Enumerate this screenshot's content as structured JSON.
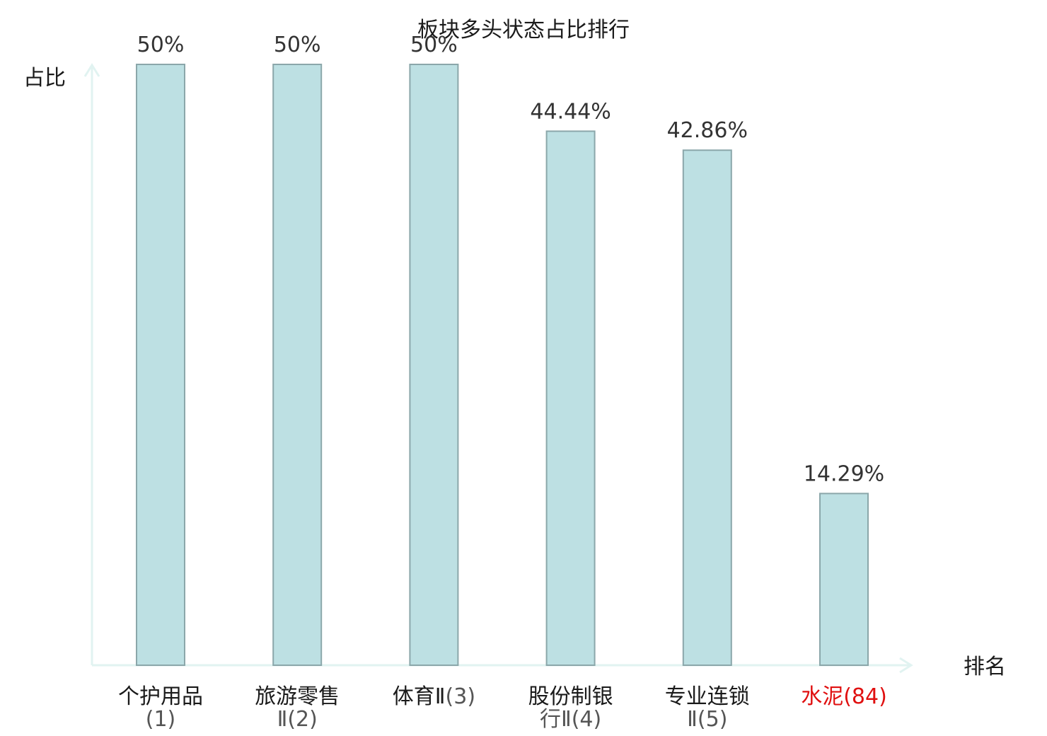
{
  "chart_data": {
    "type": "bar",
    "title": "板块多头状态占比排行",
    "xlabel": "排名",
    "ylabel": "占比",
    "ylim": [
      0,
      50
    ],
    "grid": false,
    "categories": [
      {
        "lines": [
          "个护用品",
          "(1)"
        ],
        "highlight": false
      },
      {
        "lines": [
          "旅游零售",
          "Ⅱ(2)"
        ],
        "highlight": false
      },
      {
        "lines": [
          "体育Ⅱ",
          "(3)"
        ],
        "highlight": false
      },
      {
        "lines": [
          "股份制银",
          "行Ⅱ(4)"
        ],
        "highlight": false
      },
      {
        "lines": [
          "专业连锁",
          "Ⅱ(5)"
        ],
        "highlight": false
      },
      {
        "lines": [
          "水泥",
          "(84)"
        ],
        "highlight": true
      }
    ],
    "values": [
      50,
      50,
      50,
      44.44,
      42.86,
      14.29
    ],
    "value_labels": [
      "50%",
      "50%",
      "50%",
      "44.44%",
      "42.86%",
      "14.29%"
    ],
    "colors": {
      "bar_fill": "#bde0e3",
      "bar_stroke": "#8ba7aa",
      "axis": "#e1f3f1",
      "label_text": "#1a1a1a",
      "label_sub_text": "#555555",
      "highlight_text": "#e01010"
    }
  }
}
